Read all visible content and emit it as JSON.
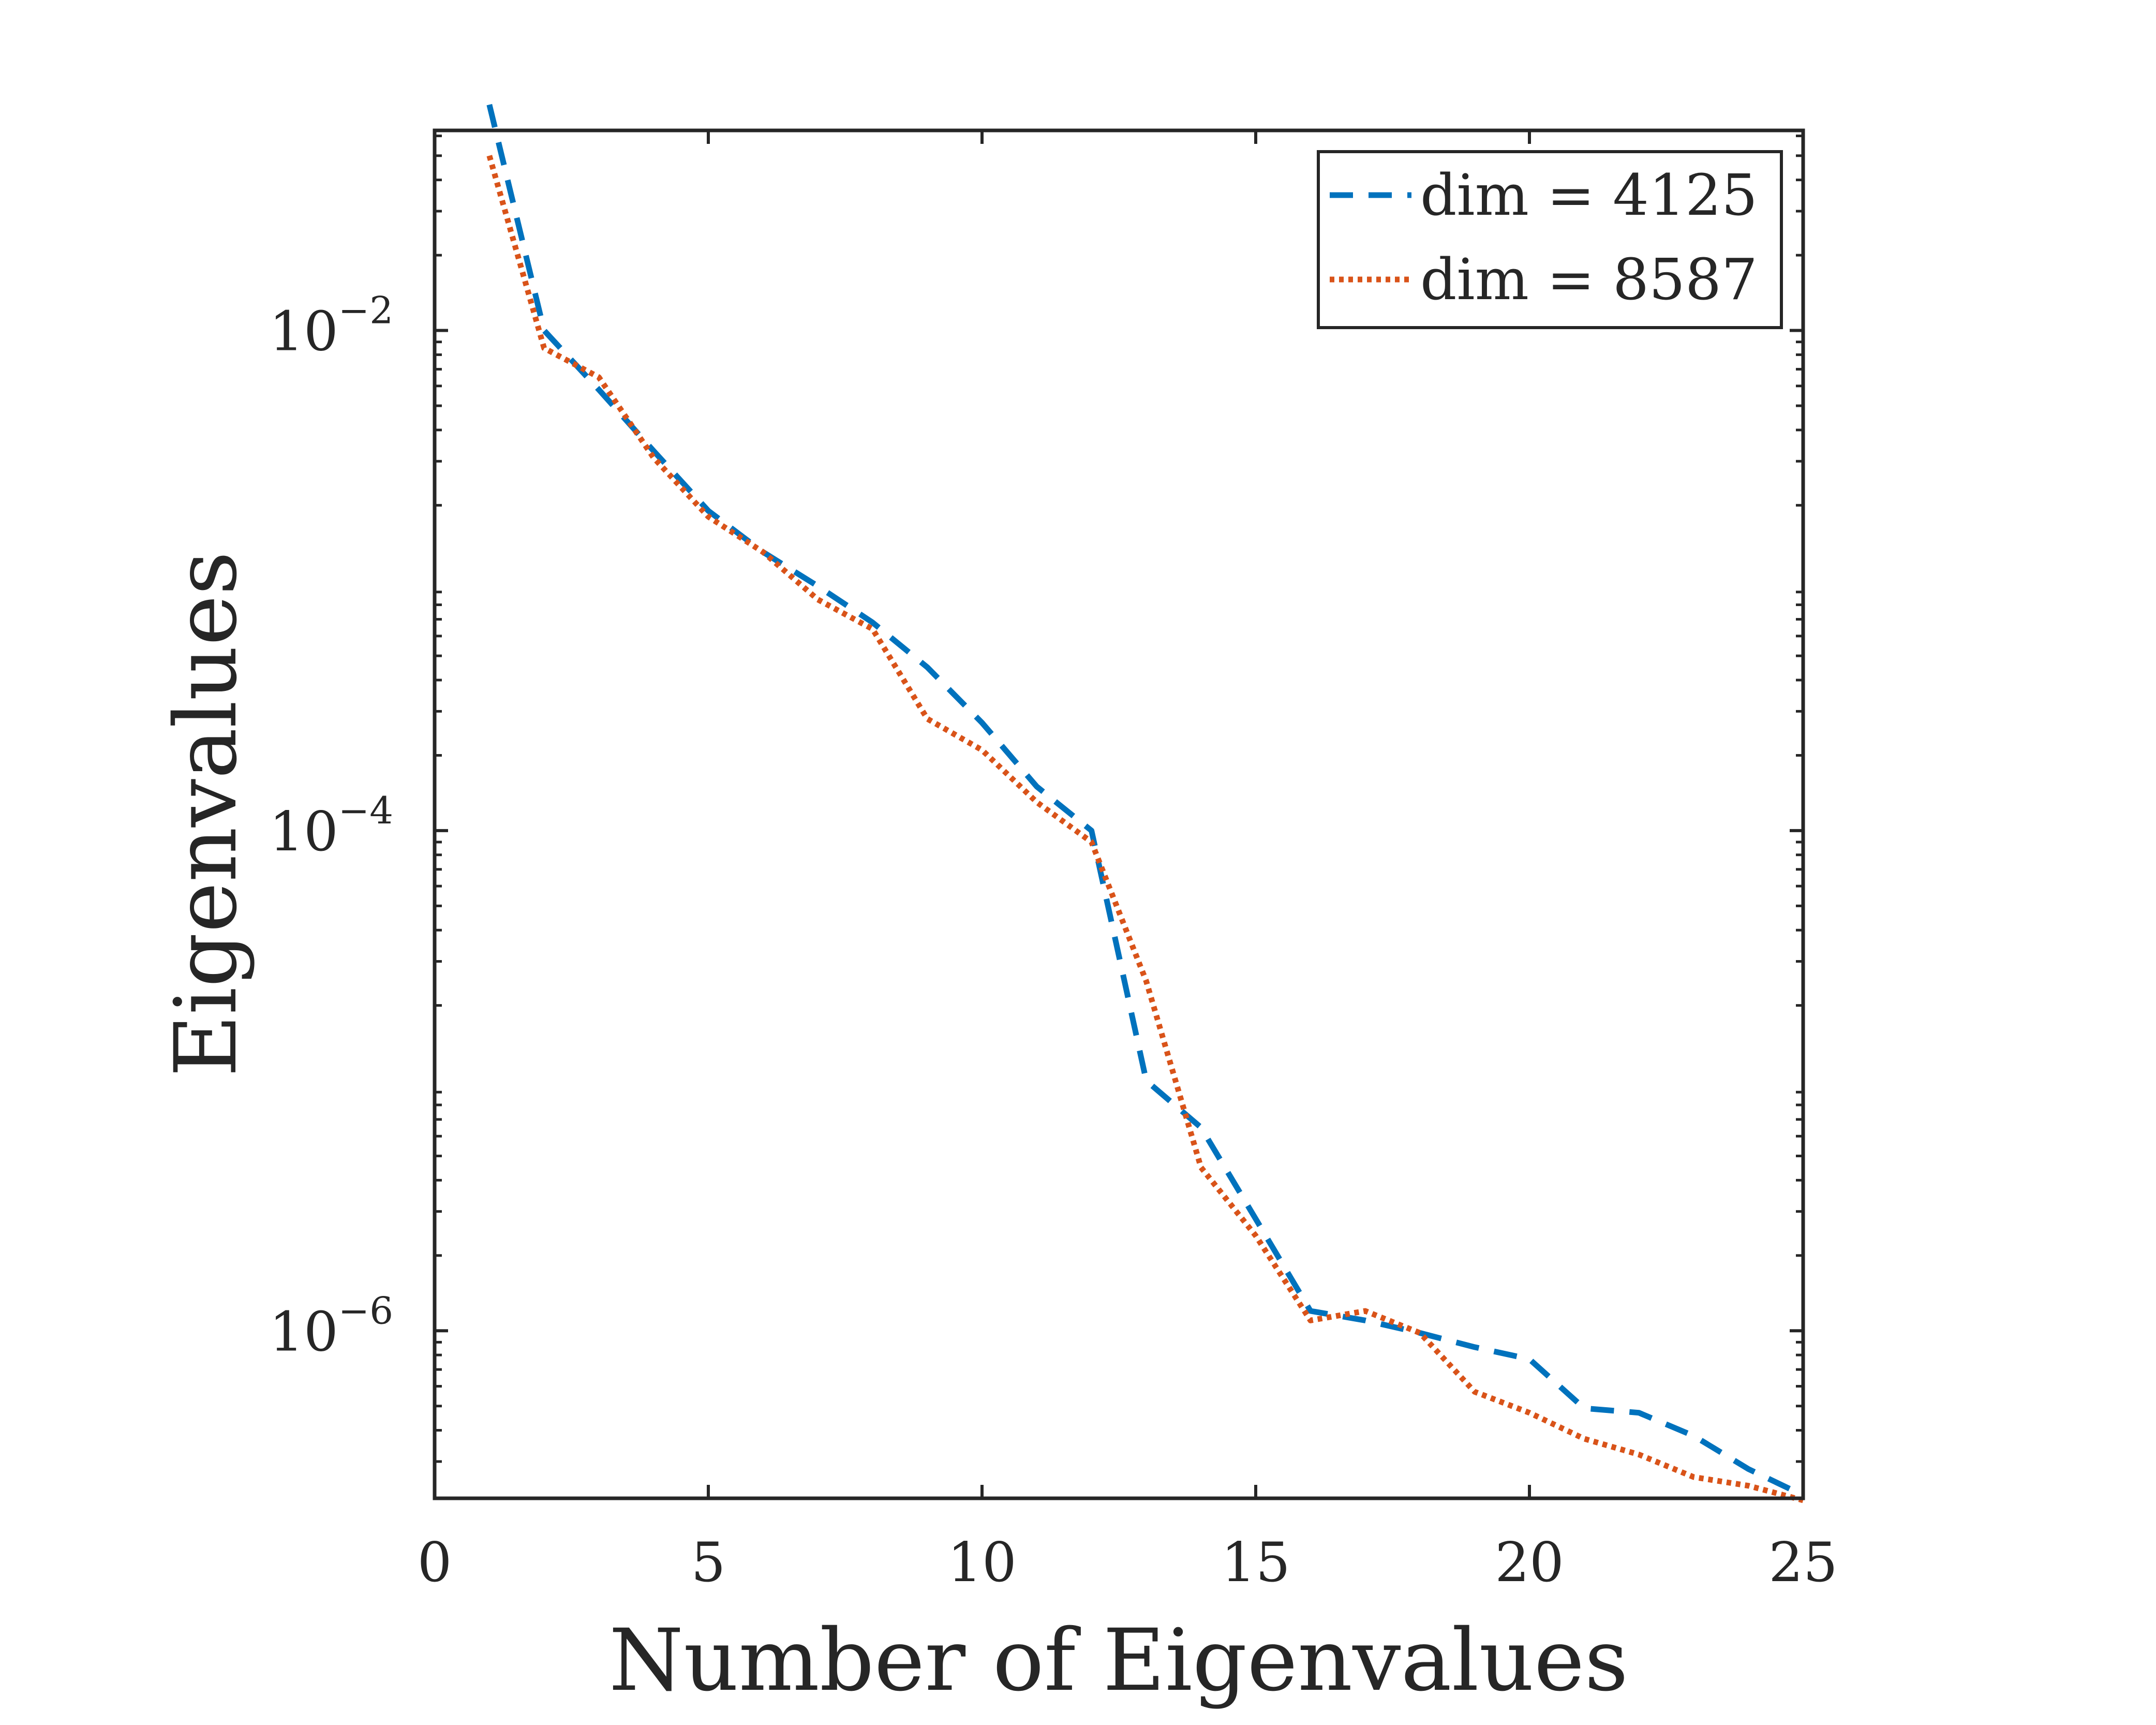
{
  "chart_data": {
    "type": "line",
    "xlabel": "Number of Eigenvalues",
    "ylabel": "Eigenvalues",
    "xlim": [
      0,
      25
    ],
    "ylim_log10": [
      -6.67,
      -1.2
    ],
    "yscale": "log",
    "x_ticks": [
      {
        "value": 0,
        "label": "0"
      },
      {
        "value": 5,
        "label": "5"
      },
      {
        "value": 10,
        "label": "10"
      },
      {
        "value": 15,
        "label": "15"
      },
      {
        "value": 20,
        "label": "20"
      },
      {
        "value": 25,
        "label": "25"
      }
    ],
    "y_ticks": [
      {
        "exp": -2,
        "base": "10",
        "sup": "−2"
      },
      {
        "exp": -4,
        "base": "10",
        "sup": "−4"
      },
      {
        "exp": -6,
        "base": "10",
        "sup": "−6"
      }
    ],
    "legend_position": "top-right",
    "grid": false,
    "series": [
      {
        "name": "dim = 4125",
        "color": "#0072BD",
        "style": "dashed",
        "x": [
          1,
          2,
          3,
          4,
          5,
          6,
          7,
          8,
          9,
          10,
          11,
          12,
          13,
          14,
          15,
          16,
          17,
          18,
          19,
          20,
          21,
          22,
          23,
          24,
          25
        ],
        "y": [
          0.08,
          0.01,
          0.0058,
          0.0033,
          0.0019,
          0.0013,
          0.00095,
          0.00068,
          0.00045,
          0.00027,
          0.00015,
          0.0001,
          1e-05,
          6.5e-06,
          2.8e-06,
          1.2e-06,
          1.1e-06,
          9.8e-07,
          8.6e-07,
          7.7e-07,
          4.9e-07,
          4.7e-07,
          3.8e-07,
          2.8e-07,
          2.2e-07
        ]
      },
      {
        "name": "dim = 8587",
        "color": "#D95319",
        "style": "dotted",
        "x": [
          1,
          2,
          3,
          4,
          5,
          6,
          7,
          8,
          9,
          10,
          11,
          12,
          13,
          14,
          15,
          16,
          17,
          18,
          19,
          20,
          21,
          22,
          23,
          24,
          25
        ],
        "y": [
          0.05,
          0.0085,
          0.0065,
          0.0031,
          0.0018,
          0.0013,
          0.00084,
          0.00064,
          0.00028,
          0.00021,
          0.00013,
          9e-05,
          2.5e-05,
          4.5e-06,
          2.4e-06,
          1.1e-06,
          1.2e-06,
          9.8e-07,
          5.7e-07,
          4.7e-07,
          3.7e-07,
          3.2e-07,
          2.6e-07,
          2.4e-07,
          2.1e-07
        ]
      }
    ]
  }
}
